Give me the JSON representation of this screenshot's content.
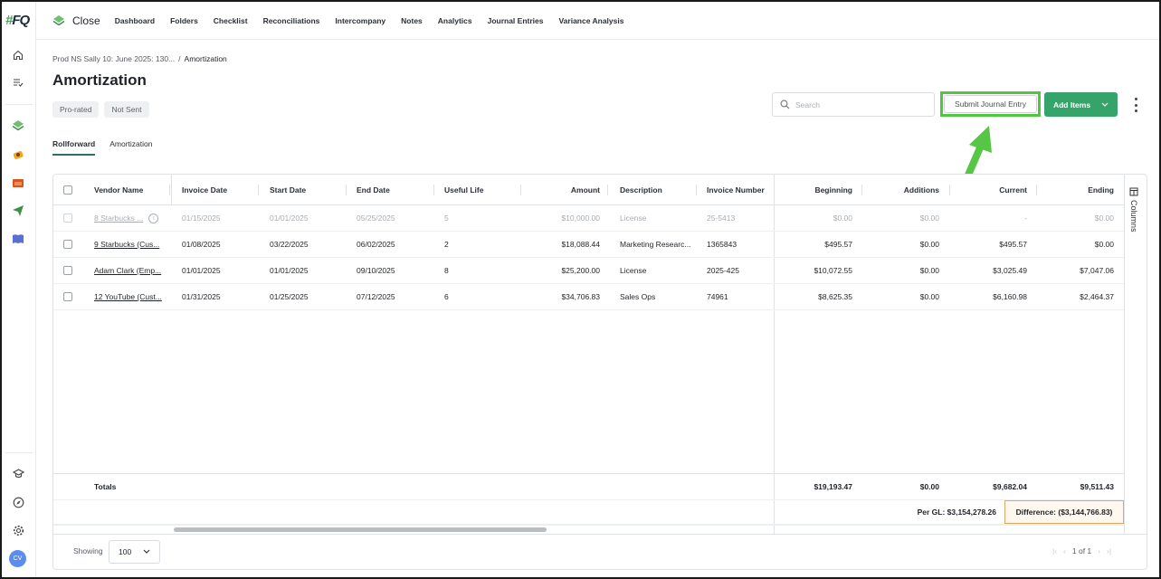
{
  "rail": {
    "logo": "#FQ",
    "avatar": "CV"
  },
  "nav": {
    "brand": "Close",
    "items": [
      "Dashboard",
      "Folders",
      "Checklist",
      "Reconciliations",
      "Intercompany",
      "Notes",
      "Analytics",
      "Journal Entries",
      "Variance Analysis"
    ]
  },
  "breadcrumb": {
    "parent": "Prod NS Sally 10: June 2025: 130...",
    "separator": "/",
    "current": "Amortization"
  },
  "page": {
    "title": "Amortization",
    "badges": [
      "Pro-rated",
      "Not Sent"
    ]
  },
  "toolbar": {
    "search_placeholder": "Search",
    "submit_label": "Submit Journal Entry",
    "add_items_label": "Add Items",
    "highlight_color": "#4fc73f",
    "accent_color": "#34a46b"
  },
  "tabs": [
    "Rollforward",
    "Amortization"
  ],
  "table": {
    "columns": [
      "Vendor Name",
      "Invoice Date",
      "Start Date",
      "End Date",
      "Useful Life",
      "Amount",
      "Description",
      "Invoice Number",
      "Beginning",
      "Additions",
      "Current",
      "Ending"
    ],
    "rows": [
      {
        "vendor": "8 Starbucks ...",
        "invoice_date": "01/15/2025",
        "start": "01/01/2025",
        "end": "05/25/2025",
        "life": "5",
        "amount": "$10,000.00",
        "desc": "License",
        "invoice_no": "25-5413",
        "beginning": "$0.00",
        "additions": "$0.00",
        "current": "-",
        "ending": "$0.00"
      },
      {
        "vendor": "9 Starbucks (Cus...",
        "invoice_date": "01/08/2025",
        "start": "03/22/2025",
        "end": "06/02/2025",
        "life": "2",
        "amount": "$18,088.44",
        "desc": "Marketing Researc...",
        "invoice_no": "1365843",
        "beginning": "$495.57",
        "additions": "$0.00",
        "current": "$495.57",
        "ending": "$0.00"
      },
      {
        "vendor": "Adam Clark (Emp...",
        "invoice_date": "01/01/2025",
        "start": "01/01/2025",
        "end": "09/10/2025",
        "life": "8",
        "amount": "$25,200.00",
        "desc": "License",
        "invoice_no": "2025-425",
        "beginning": "$10,072.55",
        "additions": "$0.00",
        "current": "$3,025.49",
        "ending": "$7,047.06"
      },
      {
        "vendor": "12 YouTube (Cust...",
        "invoice_date": "01/31/2025",
        "start": "01/25/2025",
        "end": "07/12/2025",
        "life": "6",
        "amount": "$34,706.83",
        "desc": "Sales Ops",
        "invoice_no": "74961",
        "beginning": "$8,625.35",
        "additions": "$0.00",
        "current": "$6,160.98",
        "ending": "$2,464.37"
      }
    ],
    "totals": {
      "label": "Totals",
      "beginning": "$19,193.47",
      "additions": "$0.00",
      "current": "$9,682.04",
      "ending": "$9,511.43"
    },
    "per_gl": "Per GL: $3,154,278.26",
    "difference": "Difference: ($3,144,766.83)",
    "columns_panel_label": "Columns"
  },
  "footer": {
    "showing_label": "Showing",
    "page_size": "100",
    "page_text": "1 of 1"
  }
}
